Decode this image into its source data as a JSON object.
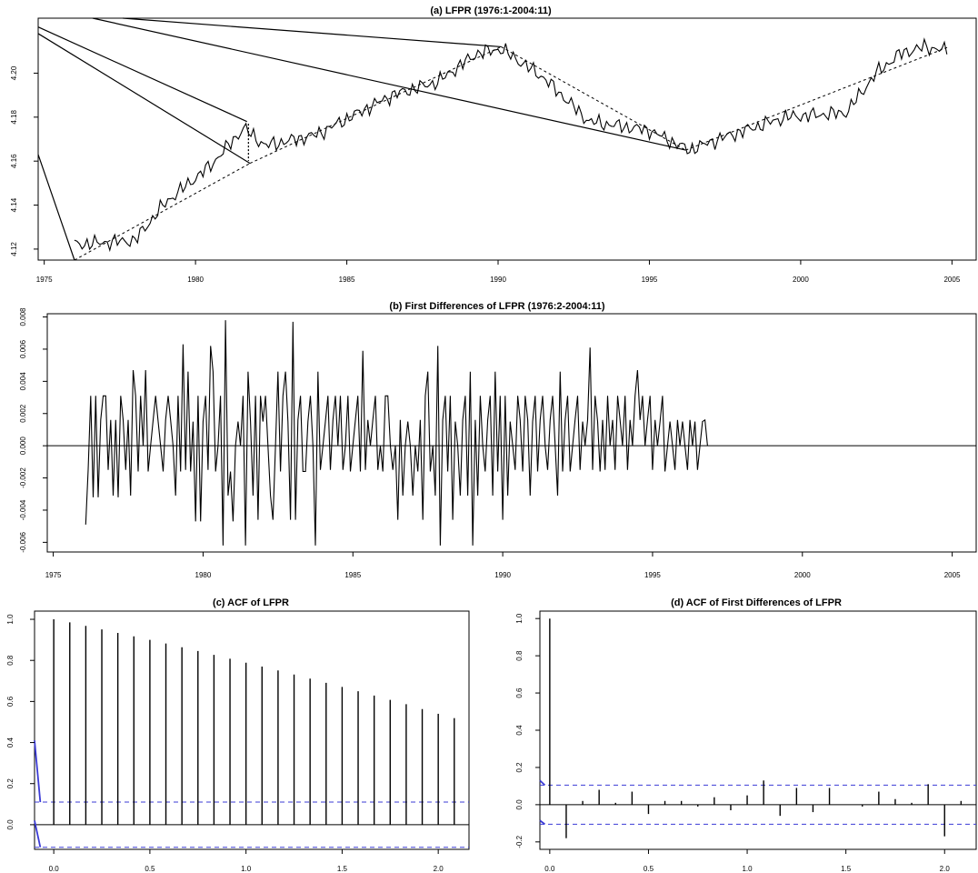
{
  "colors": {
    "line": "#000000",
    "ci": "#3b3bd6"
  },
  "chart_data": [
    {
      "type": "line",
      "title": "(a) LFPR (1976:1-2004:11)",
      "xlim": [
        1974.8,
        2005.8
      ],
      "ylim": [
        4.115,
        4.225
      ],
      "xticks": [
        1975,
        1980,
        1985,
        1990,
        1995,
        2000,
        2005
      ],
      "xtick_labels": [
        "1975",
        "1980",
        "1985",
        "1990",
        "1995",
        "2000",
        "2005"
      ],
      "yticks": [
        4.12,
        4.14,
        4.16,
        4.18,
        4.2
      ],
      "ytick_labels": [
        "4.12",
        "4.14",
        "4.16",
        "4.18",
        "4.20"
      ],
      "anchors": [
        [
          1976.0,
          4.122
        ],
        [
          1978.0,
          4.124
        ],
        [
          1979.0,
          4.141
        ],
        [
          1980.5,
          4.158
        ],
        [
          1981.6,
          4.175
        ],
        [
          1982.3,
          4.167
        ],
        [
          1984.0,
          4.172
        ],
        [
          1986.5,
          4.19
        ],
        [
          1988.0,
          4.196
        ],
        [
          1989.3,
          4.209
        ],
        [
          1990.1,
          4.211
        ],
        [
          1991.5,
          4.198
        ],
        [
          1993.0,
          4.178
        ],
        [
          1995.0,
          4.174
        ],
        [
          1996.3,
          4.165
        ],
        [
          1997.5,
          4.171
        ],
        [
          1999.5,
          4.18
        ],
        [
          2001.5,
          4.182
        ],
        [
          2002.5,
          4.2
        ],
        [
          2003.3,
          4.209
        ],
        [
          2004.1,
          4.212
        ],
        [
          2004.9,
          4.21
        ]
      ],
      "trend_segments": [
        [
          [
            1976.0,
            4.115
          ],
          [
            1981.8,
            4.159
          ]
        ],
        [
          [
            1981.8,
            4.159
          ],
          [
            1990.1,
            4.212
          ]
        ],
        [
          [
            1990.1,
            4.212
          ],
          [
            1996.2,
            4.165
          ]
        ],
        [
          [
            1996.2,
            4.165
          ],
          [
            2004.9,
            4.212
          ]
        ]
      ],
      "break_line": [
        [
          1981.75,
          4.177
        ],
        [
          1981.75,
          4.16
        ]
      ],
      "rays": [
        [
          [
            1974.8,
            4.163
          ],
          [
            1976.0,
            4.115
          ]
        ],
        [
          [
            1974.8,
            4.218
          ],
          [
            1981.8,
            4.159
          ]
        ],
        [
          [
            1974.8,
            4.221
          ],
          [
            1981.7,
            4.178
          ]
        ],
        [
          [
            1977.6,
            4.225
          ],
          [
            1990.1,
            4.212
          ]
        ],
        [
          [
            1976.6,
            4.225
          ],
          [
            1996.2,
            4.165
          ]
        ]
      ]
    },
    {
      "type": "line",
      "title": "(b) First Differences of LFPR (1976:2-2004:11)",
      "xlim": [
        1974.8,
        2005.8
      ],
      "ylim": [
        -0.0066,
        0.0082
      ],
      "xticks": [
        1975,
        1980,
        1985,
        1990,
        1995,
        2000,
        2005
      ],
      "xtick_labels": [
        "1975",
        "1980",
        "1985",
        "1990",
        "1995",
        "2000",
        "2005"
      ],
      "yticks": [
        -0.006,
        -0.004,
        -0.002,
        0.0,
        0.002,
        0.004,
        0.006,
        0.008
      ],
      "ytick_labels": [
        "-0.006",
        "-0.004",
        "-0.002",
        "0.000",
        "0.002",
        "0.004",
        "0.006",
        "0.008"
      ],
      "zero_line": true,
      "start": 1976.083,
      "step": 0.08333,
      "values": [
        -0.0049,
        -0.0015,
        0.0031,
        -0.0032,
        0.0031,
        -0.0032,
        0.0016,
        0.0031,
        0.0031,
        -0.0015,
        0.0016,
        -0.0031,
        0.0016,
        -0.0032,
        0.0031,
        0.0016,
        -0.0015,
        0.0016,
        -0.0031,
        0.0047,
        0.0031,
        -0.0016,
        0.0031,
        0.0,
        0.0047,
        -0.0016,
        0.0,
        0.0016,
        0.0031,
        0.0015,
        0.0,
        -0.0016,
        0.0016,
        0.0031,
        0.0016,
        0.0,
        -0.0031,
        0.0031,
        -0.0016,
        0.0063,
        -0.0015,
        0.0046,
        -0.0016,
        0.0015,
        -0.0047,
        0.0031,
        -0.0047,
        0.0015,
        0.0031,
        -0.0015,
        0.0062,
        0.0046,
        -0.0016,
        0.0,
        0.0031,
        -0.0062,
        0.0078,
        -0.0031,
        -0.0016,
        -0.0047,
        0.0,
        0.0015,
        0.0,
        0.0031,
        -0.0062,
        0.0046,
        0.0015,
        -0.0031,
        0.0031,
        -0.0046,
        0.0031,
        0.0015,
        0.0031,
        0.0,
        -0.0031,
        -0.0046,
        0.0,
        0.0046,
        -0.0016,
        0.0031,
        0.0046,
        0.0015,
        -0.0046,
        0.0077,
        -0.0046,
        0.0016,
        0.0031,
        -0.0016,
        -0.0016,
        0.0015,
        0.0031,
        0.0,
        -0.0062,
        0.0046,
        -0.0015,
        0.0,
        0.0015,
        0.0031,
        -0.0015,
        0.0016,
        0.0031,
        0.0,
        0.0031,
        -0.0015,
        0.0,
        0.0031,
        -0.0016,
        0.0,
        0.0016,
        0.0031,
        -0.0016,
        0.0059,
        -0.0015,
        0.0016,
        0.0,
        0.0016,
        0.0031,
        -0.0015,
        0.0,
        -0.0016,
        0.0031,
        0.0031,
        0.0,
        -0.0015,
        0.0,
        -0.0046,
        0.0016,
        -0.0031,
        0.0,
        0.0015,
        0.0,
        -0.0031,
        0.0,
        -0.0016,
        0.0016,
        -0.0046,
        0.0031,
        0.0046,
        -0.0016,
        0.0,
        -0.0031,
        0.0062,
        -0.0062,
        0.0016,
        0.0031,
        -0.0016,
        0.0031,
        -0.0046,
        0.0015,
        0.0,
        -0.0031,
        0.0016,
        0.0031,
        -0.0031,
        0.0046,
        -0.0062,
        0.0016,
        -0.0031,
        0.0031,
        0.0,
        -0.0016,
        0.0016,
        0.0031,
        -0.0031,
        0.0046,
        -0.0016,
        0.0031,
        -0.0046,
        0.0031,
        -0.0031,
        0.0015,
        0.0,
        -0.0015,
        0.0031,
        0.0016,
        -0.0016,
        0.0031,
        0.0016,
        -0.0031,
        0.0015,
        0.0031,
        -0.0016,
        0.0016,
        0.0031,
        0.0,
        -0.0015,
        0.0016,
        0.0031,
        0.0,
        -0.0031,
        0.0046,
        -0.0016,
        0.0016,
        0.0031,
        -0.0016,
        0.0,
        0.0016,
        0.0031,
        -0.0015,
        0.0015,
        0.0,
        0.0016,
        0.0061,
        -0.0015,
        0.0031,
        0.0015,
        -0.0016,
        0.0016,
        -0.0015,
        0.0031,
        0.0,
        0.0016,
        -0.0015,
        0.0031,
        0.0016,
        0.0,
        0.0031,
        -0.0015,
        0.0016,
        0.0,
        0.0031,
        0.0047,
        0.0016,
        0.0031,
        0.0,
        0.0016,
        0.0031,
        -0.0015,
        0.0016,
        0.0,
        0.0015,
        0.0031,
        -0.0016,
        0.0,
        0.0015,
        0.0,
        -0.0015,
        0.0016,
        0.0,
        0.0015,
        0.0,
        -0.0015,
        0.0016,
        0.0,
        0.0015,
        -0.0015,
        0.0,
        0.0015,
        0.0016,
        0.0
      ],
      "values_tail_note": ""
    },
    {
      "type": "bar",
      "title": "(c) ACF of LFPR",
      "xlim": [
        -0.1,
        2.16
      ],
      "ylim": [
        -0.12,
        1.04
      ],
      "xticks": [
        0.0,
        0.5,
        1.0,
        1.5,
        2.0
      ],
      "xtick_labels": [
        "0.0",
        "0.5",
        "1.0",
        "1.5",
        "2.0"
      ],
      "yticks": [
        0.0,
        0.2,
        0.4,
        0.6,
        0.8,
        1.0
      ],
      "ytick_labels": [
        "0.0",
        "0.2",
        "0.4",
        "0.6",
        "0.8",
        "1.0"
      ],
      "lags": [
        0.0,
        0.0833,
        0.1667,
        0.25,
        0.3333,
        0.4167,
        0.5,
        0.5833,
        0.6667,
        0.75,
        0.8333,
        0.9167,
        1.0,
        1.0833,
        1.1667,
        1.25,
        1.3333,
        1.4167,
        1.5,
        1.5833,
        1.6667,
        1.75,
        1.8333,
        1.9167,
        2.0,
        2.0833
      ],
      "values": [
        1.0,
        0.985,
        0.968,
        0.951,
        0.934,
        0.917,
        0.9,
        0.882,
        0.864,
        0.846,
        0.827,
        0.808,
        0.789,
        0.77,
        0.751,
        0.731,
        0.711,
        0.691,
        0.671,
        0.65,
        0.629,
        0.608,
        0.587,
        0.563,
        0.54,
        0.519
      ],
      "ci": 0.11
    },
    {
      "type": "bar",
      "title": "(d) ACF of First Differences of LFPR",
      "xlim": [
        -0.05,
        2.16
      ],
      "ylim": [
        -0.24,
        1.04
      ],
      "xticks": [
        0.0,
        0.5,
        1.0,
        1.5,
        2.0
      ],
      "xtick_labels": [
        "0.0",
        "0.5",
        "1.0",
        "1.5",
        "2.0"
      ],
      "yticks": [
        -0.2,
        0.0,
        0.2,
        0.4,
        0.6,
        0.8,
        1.0
      ],
      "ytick_labels": [
        "-0.2",
        "0.0",
        "0.2",
        "0.4",
        "0.6",
        "0.8",
        "1.0"
      ],
      "lags": [
        0.0,
        0.0833,
        0.1667,
        0.25,
        0.3333,
        0.4167,
        0.5,
        0.5833,
        0.6667,
        0.75,
        0.8333,
        0.9167,
        1.0,
        1.0833,
        1.1667,
        1.25,
        1.3333,
        1.4167,
        1.5,
        1.5833,
        1.6667,
        1.75,
        1.8333,
        1.9167,
        2.0,
        2.0833
      ],
      "values": [
        1.0,
        -0.18,
        0.02,
        0.08,
        0.01,
        0.07,
        -0.05,
        0.02,
        0.02,
        -0.01,
        0.04,
        -0.03,
        0.05,
        0.13,
        -0.06,
        0.09,
        -0.04,
        0.09,
        0.0,
        -0.01,
        0.07,
        0.03,
        0.01,
        0.11,
        -0.17,
        0.02
      ],
      "ci": 0.105
    }
  ]
}
